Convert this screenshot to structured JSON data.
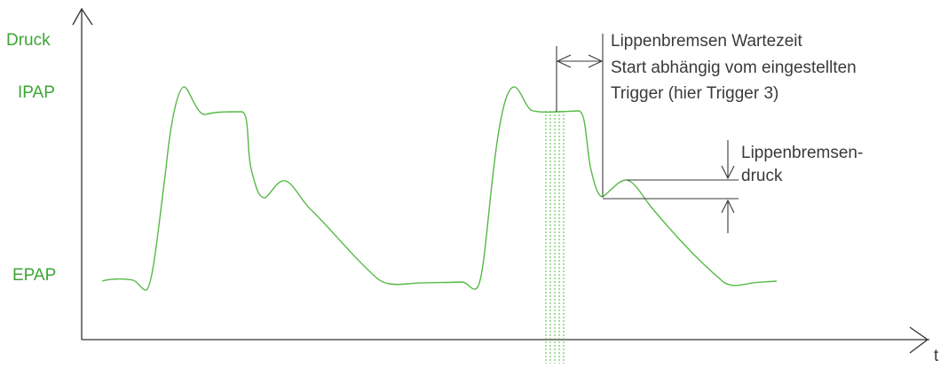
{
  "colors": {
    "curve": "#57b947",
    "axis_label": "#3ea535",
    "axis": "#333333",
    "annotation": "#3a3a3a"
  },
  "axis": {
    "y_label": "Druck",
    "x_label": "t"
  },
  "levels": {
    "ipap": "IPAP",
    "epap": "EPAP"
  },
  "annotations": {
    "wait_time_line1": "Lippenbremsen Wartezeit",
    "wait_time_line2": "Start abhängig vom eingestellten",
    "wait_time_line3": "Trigger (hier Trigger 3)",
    "pressure_line1": "Lippenbremsen-",
    "pressure_line2": "druck"
  }
}
